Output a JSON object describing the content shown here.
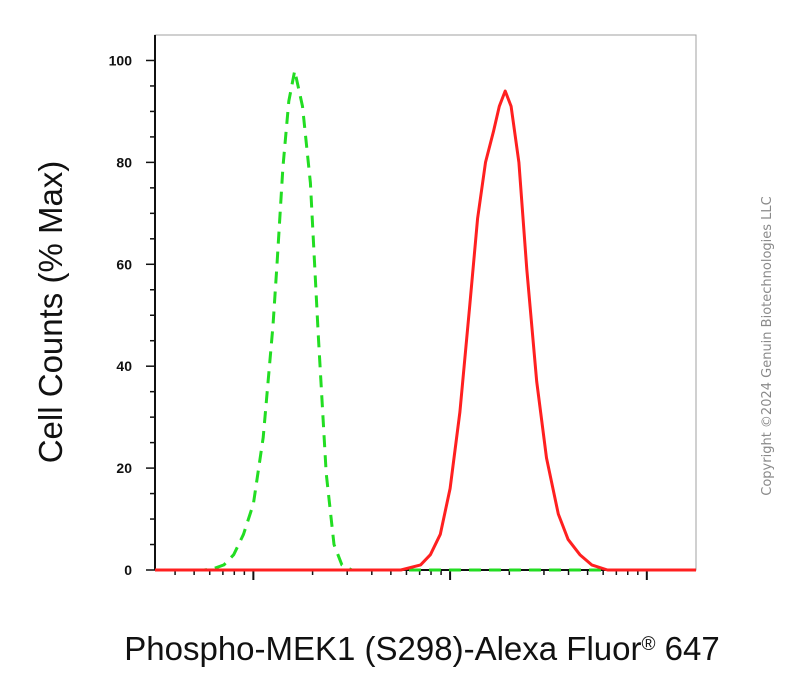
{
  "chart_data": {
    "type": "line",
    "xlabel": "Phospho-MEK1 (S298)-Alexa Fluor",
    "xlabel_superscript": "®",
    "xlabel_suffix": " 647",
    "ylabel": "Cell Counts (% Max)",
    "ylim": [
      0,
      105
    ],
    "x_scale": "log",
    "xlim": [
      -0.5,
      2.25
    ],
    "grid": false,
    "legend": "none",
    "y_ticks": [
      {
        "value": 0,
        "label": "0"
      },
      {
        "value": 20,
        "label": "20"
      },
      {
        "value": 40,
        "label": "40"
      },
      {
        "value": 60,
        "label": "60"
      },
      {
        "value": 80,
        "label": "80"
      },
      {
        "value": 100,
        "label": "100"
      }
    ],
    "x_major_decades": [
      0,
      1,
      2
    ],
    "series": [
      {
        "color": "#22dd22",
        "dash": "dashed",
        "points": [
          {
            "x": -0.5,
            "y": 0
          },
          {
            "x": -0.25,
            "y": 0
          },
          {
            "x": -0.2,
            "y": 0.3
          },
          {
            "x": -0.15,
            "y": 1
          },
          {
            "x": -0.1,
            "y": 3
          },
          {
            "x": -0.05,
            "y": 7
          },
          {
            "x": 0.0,
            "y": 13
          },
          {
            "x": 0.05,
            "y": 26
          },
          {
            "x": 0.1,
            "y": 48
          },
          {
            "x": 0.12,
            "y": 60
          },
          {
            "x": 0.15,
            "y": 79
          },
          {
            "x": 0.18,
            "y": 92
          },
          {
            "x": 0.21,
            "y": 98
          },
          {
            "x": 0.25,
            "y": 91
          },
          {
            "x": 0.29,
            "y": 76
          },
          {
            "x": 0.33,
            "y": 46
          },
          {
            "x": 0.37,
            "y": 19
          },
          {
            "x": 0.41,
            "y": 5
          },
          {
            "x": 0.45,
            "y": 1
          },
          {
            "x": 0.5,
            "y": 0
          },
          {
            "x": 0.85,
            "y": 0
          },
          {
            "x": 1.2,
            "y": 0
          },
          {
            "x": 1.45,
            "y": 0
          },
          {
            "x": 1.9,
            "y": 0
          },
          {
            "x": 2.25,
            "y": 0
          }
        ]
      },
      {
        "color": "#ff2020",
        "dash": "solid",
        "points": [
          {
            "x": -0.5,
            "y": 0
          },
          {
            "x": 0.5,
            "y": 0
          },
          {
            "x": 0.75,
            "y": 0
          },
          {
            "x": 0.85,
            "y": 1
          },
          {
            "x": 0.9,
            "y": 3
          },
          {
            "x": 0.95,
            "y": 7
          },
          {
            "x": 1.0,
            "y": 16
          },
          {
            "x": 1.05,
            "y": 31
          },
          {
            "x": 1.1,
            "y": 52
          },
          {
            "x": 1.14,
            "y": 69
          },
          {
            "x": 1.18,
            "y": 80
          },
          {
            "x": 1.22,
            "y": 86
          },
          {
            "x": 1.25,
            "y": 91
          },
          {
            "x": 1.28,
            "y": 94
          },
          {
            "x": 1.31,
            "y": 91
          },
          {
            "x": 1.35,
            "y": 80
          },
          {
            "x": 1.39,
            "y": 59
          },
          {
            "x": 1.44,
            "y": 37
          },
          {
            "x": 1.49,
            "y": 22
          },
          {
            "x": 1.55,
            "y": 11
          },
          {
            "x": 1.6,
            "y": 6
          },
          {
            "x": 1.66,
            "y": 3
          },
          {
            "x": 1.72,
            "y": 1
          },
          {
            "x": 1.8,
            "y": 0
          },
          {
            "x": 2.25,
            "y": 0
          }
        ]
      }
    ]
  },
  "watermark": {
    "text": "Copyright ©2024 Genuin Biotechnologies LLC",
    "color": "#8a8a8a"
  },
  "colors": {
    "axis": "#111111",
    "frame": "#a0a0a0"
  }
}
